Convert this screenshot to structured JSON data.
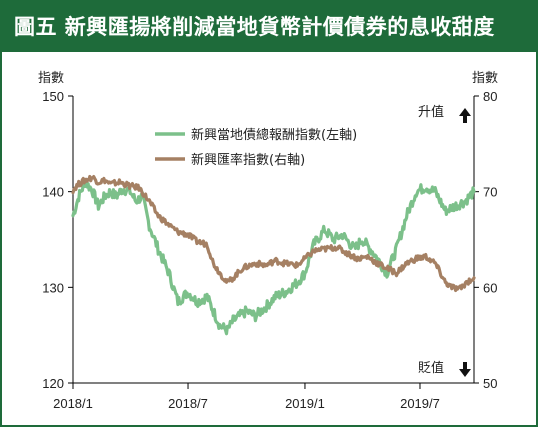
{
  "title": "圖五 新興匯揚將削減當地貨幣計價債券的息收甜度",
  "colors": {
    "header_bg": "#1e6b3a",
    "green_series": "#7cc08a",
    "brown_series": "#a58063"
  },
  "up_label": "升值",
  "down_label": "貶值",
  "chart_data": {
    "type": "line",
    "left_axis": {
      "unit": "指數",
      "ylim": [
        120,
        150
      ],
      "ticks": [
        120,
        130,
        140,
        150
      ]
    },
    "right_axis": {
      "unit": "指數",
      "ylim": [
        50,
        80
      ],
      "ticks": [
        50,
        60,
        70,
        80
      ]
    },
    "x_ticks": [
      "2018/1",
      "2018/7",
      "2019/1",
      "2019/7"
    ],
    "x_tick_dates": [
      "2018-01-01",
      "2018-07-01",
      "2019-01-01",
      "2019-07-01"
    ],
    "xlim": [
      "2018-01-01",
      "2019-09-24"
    ],
    "grid": false,
    "series": [
      {
        "name": "新興當地債總報酬指數(左軸)",
        "axis": "left",
        "color": "#7cc08a",
        "points": [
          [
            "2018-01-01",
            137.5
          ],
          [
            "2018-01-10",
            139.5
          ],
          [
            "2018-01-20",
            141.0
          ],
          [
            "2018-01-31",
            140.2
          ],
          [
            "2018-02-10",
            138.5
          ],
          [
            "2018-02-20",
            139.5
          ],
          [
            "2018-03-01",
            140.0
          ],
          [
            "2018-03-10",
            139.5
          ],
          [
            "2018-03-20",
            140.3
          ],
          [
            "2018-04-01",
            140.0
          ],
          [
            "2018-04-10",
            139.0
          ],
          [
            "2018-04-20",
            139.5
          ],
          [
            "2018-05-01",
            136.5
          ],
          [
            "2018-05-15",
            134.0
          ],
          [
            "2018-06-01",
            131.5
          ],
          [
            "2018-06-15",
            128.5
          ],
          [
            "2018-07-01",
            129.5
          ],
          [
            "2018-07-15",
            128.5
          ],
          [
            "2018-07-31",
            129.0
          ],
          [
            "2018-08-10",
            127.5
          ],
          [
            "2018-08-20",
            126.0
          ],
          [
            "2018-09-01",
            125.5
          ],
          [
            "2018-09-10",
            126.5
          ],
          [
            "2018-09-20",
            127.0
          ],
          [
            "2018-10-01",
            127.5
          ],
          [
            "2018-10-15",
            127.0
          ],
          [
            "2018-11-01",
            128.0
          ],
          [
            "2018-11-15",
            129.0
          ],
          [
            "2018-12-01",
            129.5
          ],
          [
            "2018-12-20",
            130.5
          ],
          [
            "2019-01-01",
            131.5
          ],
          [
            "2019-01-15",
            134.5
          ],
          [
            "2019-02-01",
            136.0
          ],
          [
            "2019-02-15",
            135.0
          ],
          [
            "2019-03-01",
            135.5
          ],
          [
            "2019-03-20",
            134.0
          ],
          [
            "2019-04-01",
            135.0
          ],
          [
            "2019-04-20",
            133.5
          ],
          [
            "2019-05-10",
            131.5
          ],
          [
            "2019-05-25",
            134.0
          ],
          [
            "2019-06-10",
            137.5
          ],
          [
            "2019-06-25",
            140.0
          ],
          [
            "2019-07-10",
            140.5
          ],
          [
            "2019-07-25",
            140.0
          ],
          [
            "2019-08-10",
            138.0
          ],
          [
            "2019-08-25",
            138.5
          ],
          [
            "2019-09-10",
            139.0
          ],
          [
            "2019-09-24",
            140.0
          ]
        ]
      },
      {
        "name": "新興匯率指數(右軸)",
        "axis": "right",
        "color": "#a58063",
        "points": [
          [
            "2018-01-01",
            70.2
          ],
          [
            "2018-01-10",
            70.8
          ],
          [
            "2018-01-20",
            71.2
          ],
          [
            "2018-02-01",
            71.5
          ],
          [
            "2018-02-10",
            71.0
          ],
          [
            "2018-02-20",
            71.2
          ],
          [
            "2018-03-01",
            70.8
          ],
          [
            "2018-03-15",
            71.0
          ],
          [
            "2018-03-31",
            70.6
          ],
          [
            "2018-04-15",
            70.4
          ],
          [
            "2018-05-01",
            69.0
          ],
          [
            "2018-05-15",
            67.5
          ],
          [
            "2018-06-01",
            66.5
          ],
          [
            "2018-06-15",
            65.8
          ],
          [
            "2018-07-01",
            65.5
          ],
          [
            "2018-07-15",
            64.8
          ],
          [
            "2018-07-31",
            64.5
          ],
          [
            "2018-08-10",
            62.5
          ],
          [
            "2018-08-20",
            61.5
          ],
          [
            "2018-09-01",
            60.5
          ],
          [
            "2018-09-10",
            61.0
          ],
          [
            "2018-09-25",
            62.0
          ],
          [
            "2018-10-15",
            62.5
          ],
          [
            "2018-11-01",
            62.3
          ],
          [
            "2018-11-15",
            62.8
          ],
          [
            "2018-12-01",
            62.5
          ],
          [
            "2018-12-20",
            62.3
          ],
          [
            "2019-01-01",
            63.0
          ],
          [
            "2019-01-15",
            63.8
          ],
          [
            "2019-02-01",
            64.0
          ],
          [
            "2019-02-20",
            64.2
          ],
          [
            "2019-03-10",
            63.5
          ],
          [
            "2019-03-25",
            63.0
          ],
          [
            "2019-04-10",
            63.2
          ],
          [
            "2019-04-25",
            62.5
          ],
          [
            "2019-05-10",
            62.0
          ],
          [
            "2019-05-25",
            61.5
          ],
          [
            "2019-06-10",
            62.5
          ],
          [
            "2019-06-25",
            63.0
          ],
          [
            "2019-07-10",
            63.2
          ],
          [
            "2019-07-25",
            62.5
          ],
          [
            "2019-08-10",
            60.5
          ],
          [
            "2019-08-20",
            60.0
          ],
          [
            "2019-09-01",
            59.8
          ],
          [
            "2019-09-12",
            60.5
          ],
          [
            "2019-09-24",
            61.0
          ]
        ]
      }
    ]
  }
}
